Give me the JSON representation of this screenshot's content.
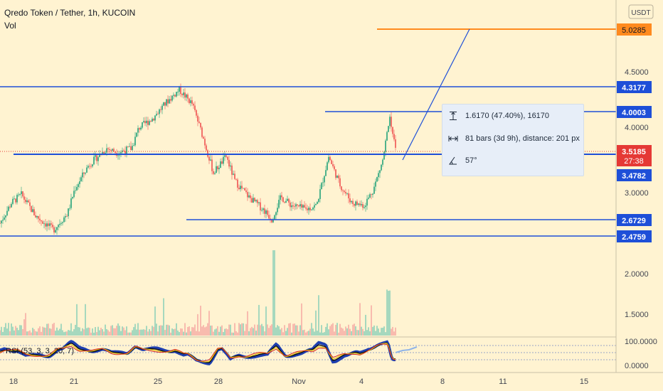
{
  "header": {
    "symbol_title": "Qredo Token / Tether, 1h, KUCOIN",
    "indicator_vol": "Vol",
    "currency": "USDT",
    "rsi_legend": "RSI (53, 3, 3, 20, 7)"
  },
  "measure": {
    "line1": "1.6170 (47.40%), 16170",
    "line2": "81 bars (3d 9h), distance: 201 px",
    "line3": "57°"
  },
  "price_labels": {
    "orange": "5.0285",
    "level_4317": "4.3177",
    "level_4000": "4.0003",
    "current": "3.5185",
    "countdown": "27:38",
    "level_3478": "3.4782",
    "level_2672": "2.6729",
    "level_2475": "2.4759"
  },
  "colors": {
    "background": "#fff3d1",
    "level_blue": "#1e4fd8",
    "orange": "#ff8a1e",
    "current_red": "#e53935",
    "candle_up": "#22a37a",
    "candle_down": "#ef5350",
    "volume_green": "#80cdb6",
    "volume_red": "#f5a3a0"
  },
  "chart_data": {
    "type": "candlestick",
    "timeframe": "1h",
    "y_ticks": [
      "4.5000",
      "4.0000",
      "3.0000",
      "2.0000",
      "1.5000"
    ],
    "rsi_ticks": [
      "100.0000",
      "0.0000"
    ],
    "x_ticks": [
      "18",
      "21",
      "25",
      "28",
      "Nov",
      "4",
      "8",
      "11",
      "15"
    ],
    "ylim": [
      1.3,
      5.3
    ],
    "close_path": [
      {
        "t": 0,
        "p": 2.63
      },
      {
        "t": 16,
        "p": 2.88
      },
      {
        "t": 30,
        "p": 2.98
      },
      {
        "t": 50,
        "p": 2.72
      },
      {
        "t": 75,
        "p": 2.55
      },
      {
        "t": 95,
        "p": 2.75
      },
      {
        "t": 105,
        "p": 3.05
      },
      {
        "t": 125,
        "p": 3.35
      },
      {
        "t": 150,
        "p": 3.55
      },
      {
        "t": 165,
        "p": 3.5
      },
      {
        "t": 185,
        "p": 3.55
      },
      {
        "t": 195,
        "p": 3.8
      },
      {
        "t": 215,
        "p": 3.92
      },
      {
        "t": 235,
        "p": 4.13
      },
      {
        "t": 252,
        "p": 4.28
      },
      {
        "t": 270,
        "p": 4.1
      },
      {
        "t": 285,
        "p": 3.7
      },
      {
        "t": 300,
        "p": 3.25
      },
      {
        "t": 318,
        "p": 3.45
      },
      {
        "t": 330,
        "p": 3.15
      },
      {
        "t": 350,
        "p": 2.95
      },
      {
        "t": 370,
        "p": 2.8
      },
      {
        "t": 382,
        "p": 2.68
      },
      {
        "t": 395,
        "p": 2.95
      },
      {
        "t": 410,
        "p": 2.85
      },
      {
        "t": 430,
        "p": 2.8
      },
      {
        "t": 445,
        "p": 2.85
      },
      {
        "t": 462,
        "p": 3.45
      },
      {
        "t": 478,
        "p": 3.1
      },
      {
        "t": 495,
        "p": 2.88
      },
      {
        "t": 512,
        "p": 2.85
      },
      {
        "t": 525,
        "p": 3.05
      },
      {
        "t": 538,
        "p": 3.4
      },
      {
        "t": 548,
        "p": 3.95
      },
      {
        "t": 556,
        "p": 3.52
      }
    ]
  }
}
